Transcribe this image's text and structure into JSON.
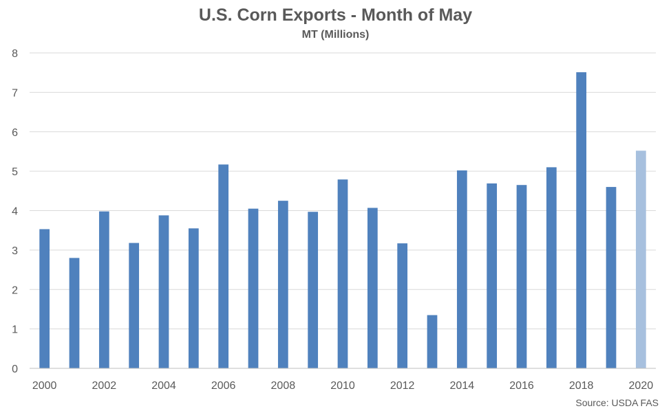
{
  "chart_data": {
    "type": "bar",
    "title": "U.S. Corn Exports - Month of May",
    "subtitle": "MT (Millions)",
    "source": "Source: USDA FAS",
    "categories": [
      "2000",
      "2001",
      "2002",
      "2003",
      "2004",
      "2005",
      "2006",
      "2007",
      "2008",
      "2009",
      "2010",
      "2011",
      "2012",
      "2013",
      "2014",
      "2015",
      "2016",
      "2017",
      "2018",
      "2019",
      "2020"
    ],
    "x_tick_labels": [
      "2000",
      "",
      "2002",
      "",
      "2004",
      "",
      "2006",
      "",
      "2008",
      "",
      "2010",
      "",
      "2012",
      "",
      "2014",
      "",
      "2016",
      "",
      "2018",
      "",
      "2020"
    ],
    "values": [
      3.53,
      2.8,
      3.98,
      3.18,
      3.88,
      3.55,
      5.17,
      4.05,
      4.25,
      3.97,
      4.79,
      4.07,
      3.17,
      1.35,
      5.02,
      4.69,
      4.65,
      5.1,
      7.51,
      4.6,
      5.52
    ],
    "y_ticks": [
      0,
      1,
      2,
      3,
      4,
      5,
      6,
      7,
      8
    ],
    "ylim": [
      0,
      8
    ],
    "grid": true,
    "colors": {
      "bar": "#4f81bd",
      "highlight_bar": "#a7c0de",
      "grid": "#d9d9d9",
      "axis": "#bfbfbf",
      "text": "#595959"
    },
    "highlight_index": 20
  }
}
